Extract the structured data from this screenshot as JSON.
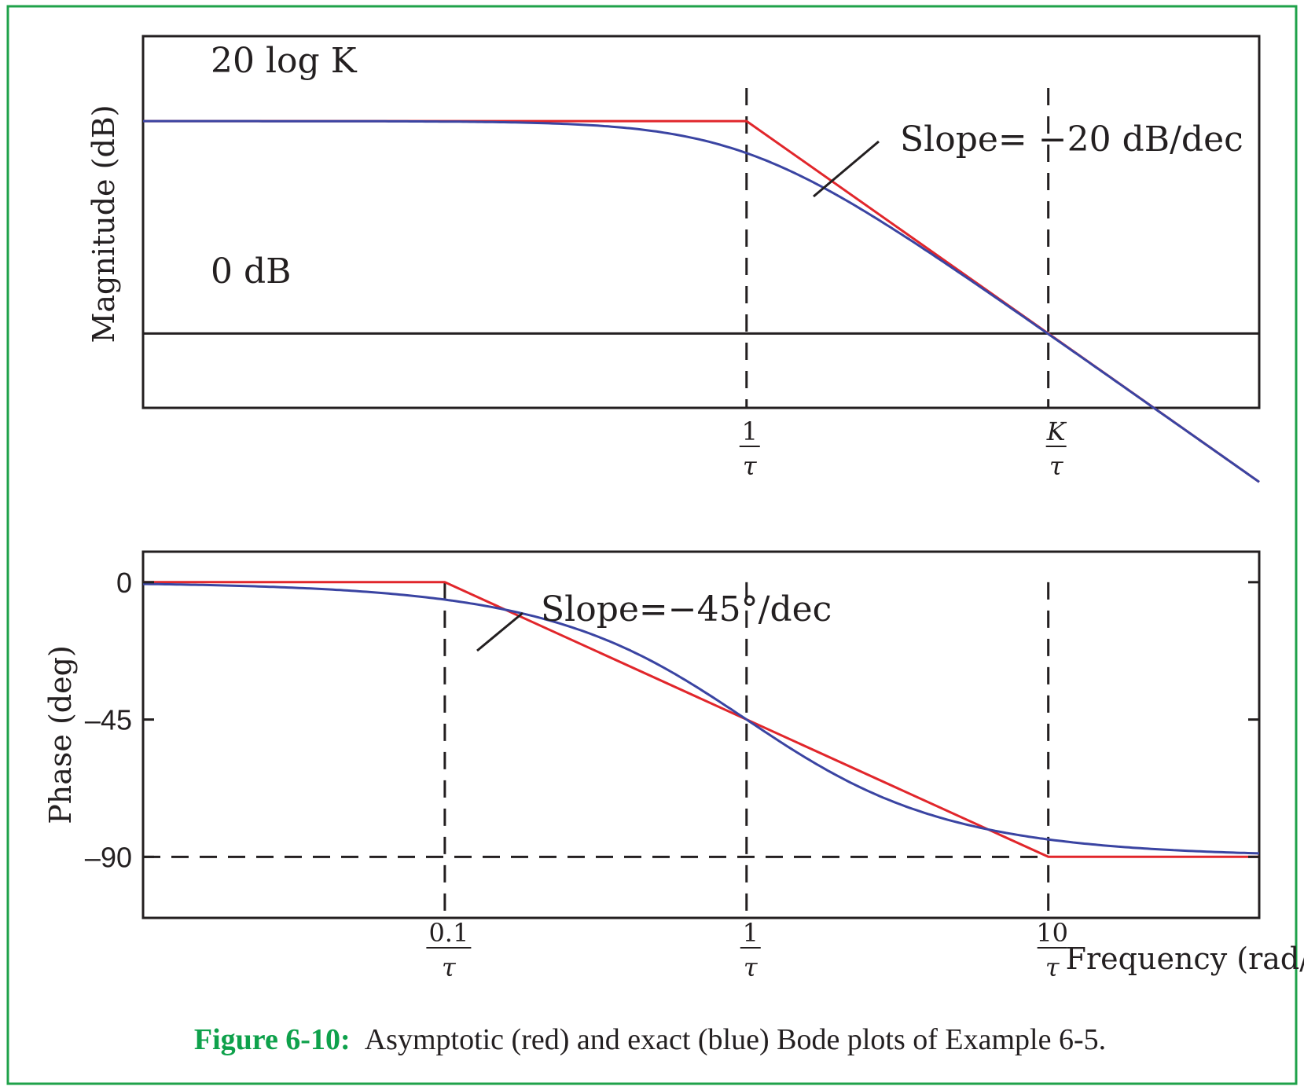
{
  "colors": {
    "frame": "#1fa24a",
    "asymptotic": "#e1262b",
    "exact": "#3a44a2",
    "axis": "#231f20",
    "caption_label": "#0ea14b"
  },
  "chart_data": [
    {
      "type": "line",
      "id": "magnitude",
      "ylabel": "Magnitude (dB)",
      "x_scale": "log10, in units of 1/τ",
      "xlim": [
        0.01,
        50
      ],
      "y_units": "dB relative to 20 log K (K = 10)",
      "ylim": [
        -27,
        8
      ],
      "annotations": {
        "level_high": "20 log K",
        "level_zero": "0 dB",
        "slope": "Slope= −20 dB/dec"
      },
      "ticks": [
        {
          "x": 1,
          "num": "1",
          "den": "τ",
          "italic_num": false
        },
        {
          "x": 10,
          "num": "K",
          "den": "τ",
          "italic_num": true
        }
      ],
      "guides": {
        "x": [
          1,
          10
        ],
        "zero_db": -20
      },
      "series": [
        {
          "name": "Asymptotic",
          "color_key": "asymptotic",
          "x": [
            0.01,
            1,
            50
          ],
          "y": [
            0,
            0,
            -33.98
          ]
        },
        {
          "name": "Exact",
          "color_key": "exact",
          "formula": "-10*log10(1+w^2)"
        }
      ]
    },
    {
      "type": "line",
      "id": "phase",
      "ylabel": "Phase (deg)",
      "xlabel": "Frequency (rad/s)",
      "x_scale": "log10, in units of 1/τ",
      "xlim": [
        0.01,
        50
      ],
      "ylim": [
        -110,
        10
      ],
      "yticks": [
        0,
        -45,
        -90
      ],
      "ytick_labels": [
        "0",
        "–45",
        "–90"
      ],
      "annotations": {
        "slope": "Slope=−45°/dec"
      },
      "ticks": [
        {
          "x": 0.1,
          "num": "0.1",
          "den": "τ"
        },
        {
          "x": 1,
          "num": "1",
          "den": "τ"
        },
        {
          "x": 10,
          "num": "10",
          "den": "τ"
        }
      ],
      "guides": {
        "x": [
          0.1,
          1,
          10
        ],
        "y": -90
      },
      "series": [
        {
          "name": "Asymptotic",
          "color_key": "asymptotic",
          "x": [
            0.01,
            0.1,
            10,
            50
          ],
          "y": [
            0,
            0,
            -90,
            -90
          ]
        },
        {
          "name": "Exact",
          "color_key": "exact",
          "formula": "-atan(w) in degrees"
        }
      ]
    }
  ],
  "caption": {
    "label": "Figure 6-10:",
    "text": "Asymptotic (red) and exact (blue) Bode plots of Example 6-5."
  }
}
